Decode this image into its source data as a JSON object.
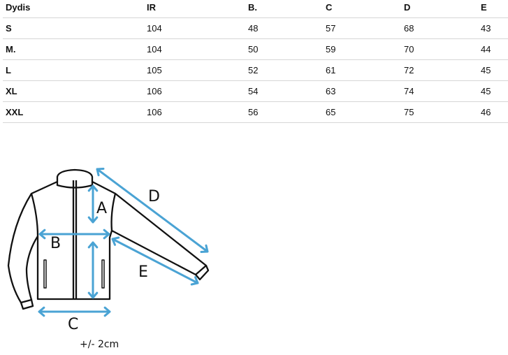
{
  "table": {
    "headers": [
      "Dydis",
      "IR",
      "B.",
      "C",
      "D",
      "E"
    ],
    "rows": [
      [
        "S",
        "104",
        "48",
        "57",
        "68",
        "43"
      ],
      [
        "M.",
        "104",
        "50",
        "59",
        "70",
        "44"
      ],
      [
        "L",
        "105",
        "52",
        "61",
        "72",
        "45"
      ],
      [
        "XL",
        "106",
        "54",
        "63",
        "74",
        "45"
      ],
      [
        "XXL",
        "106",
        "56",
        "65",
        "75",
        "46"
      ]
    ]
  },
  "diagram": {
    "labels": {
      "a": "A",
      "b": "B",
      "c": "C",
      "d": "D",
      "e": "E"
    },
    "note": "+/- 2cm",
    "arrow_color": "#4aa3d4"
  }
}
